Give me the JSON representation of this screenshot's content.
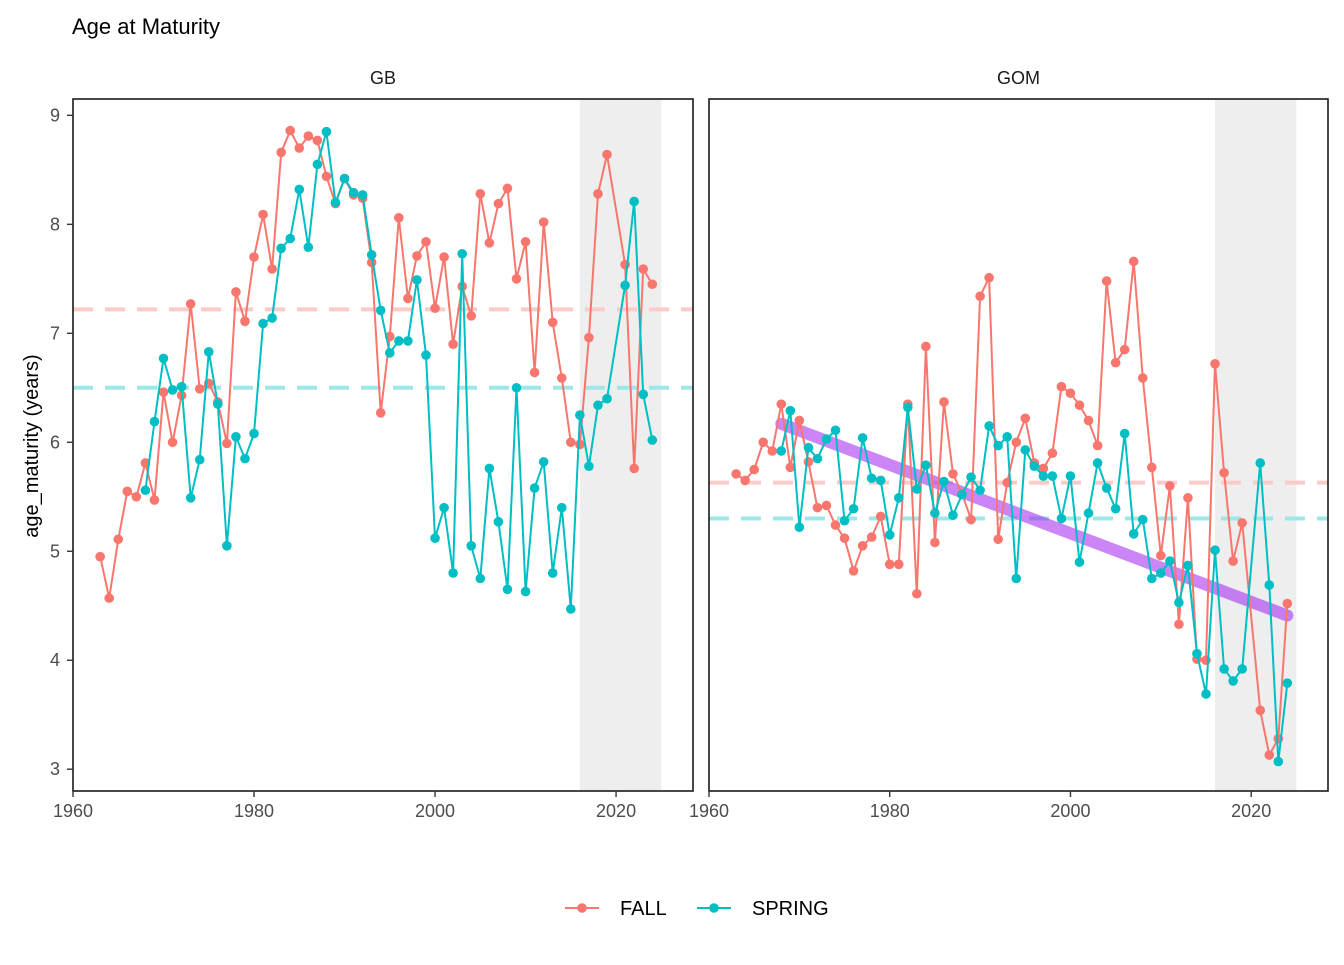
{
  "title": "Age at Maturity",
  "legend": {
    "position": "bottom",
    "items": [
      {
        "label": "FALL",
        "color": "#F8766D"
      },
      {
        "label": "SPRING",
        "color": "#00BFC4"
      }
    ]
  },
  "chart_data": {
    "type": "line",
    "title": "Age at Maturity",
    "ylabel": "age_maturity (years)",
    "xlabel": "",
    "xlim": [
      1960,
      2028.5
    ],
    "ylim": [
      2.8,
      9.15
    ],
    "x_ticks": [
      1960,
      1980,
      2000,
      2020
    ],
    "y_ticks": [
      3,
      4,
      5,
      6,
      7,
      8,
      9
    ],
    "grid": false,
    "legend_position": "bottom",
    "panels": [
      {
        "name": "GB",
        "shaded_range": [
          2016,
          2025
        ],
        "mean_lines": [
          {
            "series": "FALL",
            "value": 7.22
          },
          {
            "series": "SPRING",
            "value": 6.5
          }
        ],
        "trend": null,
        "series": [
          {
            "name": "FALL",
            "color": "#F8766D",
            "points": [
              [
                1963,
                4.95
              ],
              [
                1964,
                4.57
              ],
              [
                1965,
                5.11
              ],
              [
                1966,
                5.55
              ],
              [
                1967,
                5.5
              ],
              [
                1968,
                5.81
              ],
              [
                1969,
                5.47
              ],
              [
                1970,
                6.46
              ],
              [
                1971,
                6.0
              ],
              [
                1972,
                6.43
              ],
              [
                1973,
                7.27
              ],
              [
                1974,
                6.49
              ],
              [
                1975,
                6.54
              ],
              [
                1976,
                6.37
              ],
              [
                1977,
                5.99
              ],
              [
                1978,
                7.38
              ],
              [
                1979,
                7.11
              ],
              [
                1980,
                7.7
              ],
              [
                1981,
                8.09
              ],
              [
                1982,
                7.59
              ],
              [
                1983,
                8.66
              ],
              [
                1984,
                8.86
              ],
              [
                1985,
                8.7
              ],
              [
                1986,
                8.81
              ],
              [
                1987,
                8.77
              ],
              [
                1988,
                8.44
              ],
              [
                1989,
                8.19
              ],
              [
                1990,
                8.42
              ],
              [
                1991,
                8.27
              ],
              [
                1992,
                8.24
              ],
              [
                1993,
                7.65
              ],
              [
                1994,
                6.27
              ],
              [
                1995,
                6.97
              ],
              [
                1996,
                8.06
              ],
              [
                1997,
                7.32
              ],
              [
                1998,
                7.71
              ],
              [
                1999,
                7.84
              ],
              [
                2000,
                7.23
              ],
              [
                2001,
                7.7
              ],
              [
                2002,
                6.9
              ],
              [
                2003,
                7.43
              ],
              [
                2004,
                7.16
              ],
              [
                2005,
                8.28
              ],
              [
                2006,
                7.83
              ],
              [
                2007,
                8.19
              ],
              [
                2008,
                8.33
              ],
              [
                2009,
                7.5
              ],
              [
                2010,
                7.84
              ],
              [
                2011,
                6.64
              ],
              [
                2012,
                8.02
              ],
              [
                2013,
                7.1
              ],
              [
                2014,
                6.59
              ],
              [
                2015,
                6.0
              ],
              [
                2016,
                5.98
              ],
              [
                2017,
                6.96
              ],
              [
                2018,
                8.28
              ],
              [
                2019,
                8.64
              ],
              [
                2021,
                7.63
              ],
              [
                2022,
                5.76
              ],
              [
                2023,
                7.59
              ],
              [
                2024,
                7.45
              ]
            ]
          },
          {
            "name": "SPRING",
            "color": "#00BFC4",
            "points": [
              [
                1968,
                5.56
              ],
              [
                1969,
                6.19
              ],
              [
                1970,
                6.77
              ],
              [
                1971,
                6.48
              ],
              [
                1972,
                6.51
              ],
              [
                1973,
                5.49
              ],
              [
                1974,
                5.84
              ],
              [
                1975,
                6.83
              ],
              [
                1976,
                6.35
              ],
              [
                1977,
                5.05
              ],
              [
                1978,
                6.05
              ],
              [
                1979,
                5.85
              ],
              [
                1980,
                6.08
              ],
              [
                1981,
                7.09
              ],
              [
                1982,
                7.14
              ],
              [
                1983,
                7.78
              ],
              [
                1984,
                7.87
              ],
              [
                1985,
                8.32
              ],
              [
                1986,
                7.79
              ],
              [
                1987,
                8.55
              ],
              [
                1988,
                8.85
              ],
              [
                1989,
                8.2
              ],
              [
                1990,
                8.42
              ],
              [
                1991,
                8.29
              ],
              [
                1992,
                8.27
              ],
              [
                1993,
                7.72
              ],
              [
                1994,
                7.21
              ],
              [
                1995,
                6.82
              ],
              [
                1996,
                6.93
              ],
              [
                1997,
                6.93
              ],
              [
                1998,
                7.49
              ],
              [
                1999,
                6.8
              ],
              [
                2000,
                5.12
              ],
              [
                2001,
                5.4
              ],
              [
                2002,
                4.8
              ],
              [
                2003,
                7.73
              ],
              [
                2004,
                5.05
              ],
              [
                2005,
                4.75
              ],
              [
                2006,
                5.76
              ],
              [
                2007,
                5.27
              ],
              [
                2008,
                4.65
              ],
              [
                2009,
                6.5
              ],
              [
                2010,
                4.63
              ],
              [
                2011,
                5.58
              ],
              [
                2012,
                5.82
              ],
              [
                2013,
                4.8
              ],
              [
                2014,
                5.4
              ],
              [
                2015,
                4.47
              ],
              [
                2016,
                6.25
              ],
              [
                2017,
                5.78
              ],
              [
                2018,
                6.34
              ],
              [
                2019,
                6.4
              ],
              [
                2021,
                7.44
              ],
              [
                2022,
                8.21
              ],
              [
                2023,
                6.44
              ],
              [
                2024,
                6.02
              ]
            ]
          }
        ]
      },
      {
        "name": "GOM",
        "shaded_range": [
          2016,
          2025
        ],
        "mean_lines": [
          {
            "series": "FALL",
            "value": 5.63
          },
          {
            "series": "SPRING",
            "value": 5.3
          }
        ],
        "trend": {
          "x": [
            1968,
            2024
          ],
          "y": [
            6.17,
            4.41
          ],
          "color": "#A020F0"
        },
        "series": [
          {
            "name": "FALL",
            "color": "#F8766D",
            "points": [
              [
                1963,
                5.71
              ],
              [
                1964,
                5.65
              ],
              [
                1965,
                5.75
              ],
              [
                1966,
                6.0
              ],
              [
                1967,
                5.92
              ],
              [
                1968,
                6.35
              ],
              [
                1969,
                5.77
              ],
              [
                1970,
                6.2
              ],
              [
                1971,
                5.82
              ],
              [
                1972,
                5.4
              ],
              [
                1973,
                5.42
              ],
              [
                1974,
                5.24
              ],
              [
                1975,
                5.12
              ],
              [
                1976,
                4.82
              ],
              [
                1977,
                5.05
              ],
              [
                1978,
                5.13
              ],
              [
                1979,
                5.32
              ],
              [
                1980,
                4.88
              ],
              [
                1981,
                4.88
              ],
              [
                1982,
                6.35
              ],
              [
                1983,
                4.61
              ],
              [
                1984,
                6.88
              ],
              [
                1985,
                5.08
              ],
              [
                1986,
                6.37
              ],
              [
                1987,
                5.71
              ],
              [
                1988,
                5.53
              ],
              [
                1989,
                5.29
              ],
              [
                1990,
                7.34
              ],
              [
                1991,
                7.51
              ],
              [
                1992,
                5.11
              ],
              [
                1993,
                5.63
              ],
              [
                1994,
                6.0
              ],
              [
                1995,
                6.22
              ],
              [
                1996,
                5.81
              ],
              [
                1997,
                5.76
              ],
              [
                1998,
                5.9
              ],
              [
                1999,
                6.51
              ],
              [
                2000,
                6.45
              ],
              [
                2001,
                6.34
              ],
              [
                2002,
                6.2
              ],
              [
                2003,
                5.97
              ],
              [
                2004,
                7.48
              ],
              [
                2005,
                6.73
              ],
              [
                2006,
                6.85
              ],
              [
                2007,
                7.66
              ],
              [
                2008,
                6.59
              ],
              [
                2009,
                5.77
              ],
              [
                2010,
                4.96
              ],
              [
                2011,
                5.6
              ],
              [
                2012,
                4.33
              ],
              [
                2013,
                5.49
              ],
              [
                2014,
                4.01
              ],
              [
                2015,
                4.0
              ],
              [
                2016,
                6.72
              ],
              [
                2017,
                5.72
              ],
              [
                2018,
                4.91
              ],
              [
                2019,
                5.26
              ],
              [
                2021,
                3.54
              ],
              [
                2022,
                3.13
              ],
              [
                2023,
                3.28
              ],
              [
                2024,
                4.52
              ]
            ]
          },
          {
            "name": "SPRING",
            "color": "#00BFC4",
            "points": [
              [
                1968,
                5.92
              ],
              [
                1969,
                6.29
              ],
              [
                1970,
                5.22
              ],
              [
                1971,
                5.95
              ],
              [
                1972,
                5.85
              ],
              [
                1973,
                6.03
              ],
              [
                1974,
                6.11
              ],
              [
                1975,
                5.28
              ],
              [
                1976,
                5.39
              ],
              [
                1977,
                6.04
              ],
              [
                1978,
                5.67
              ],
              [
                1979,
                5.65
              ],
              [
                1980,
                5.15
              ],
              [
                1981,
                5.49
              ],
              [
                1982,
                6.32
              ],
              [
                1983,
                5.57
              ],
              [
                1984,
                5.79
              ],
              [
                1985,
                5.35
              ],
              [
                1986,
                5.64
              ],
              [
                1987,
                5.33
              ],
              [
                1988,
                5.52
              ],
              [
                1989,
                5.68
              ],
              [
                1990,
                5.56
              ],
              [
                1991,
                6.15
              ],
              [
                1992,
                5.97
              ],
              [
                1993,
                6.05
              ],
              [
                1994,
                4.75
              ],
              [
                1995,
                5.93
              ],
              [
                1996,
                5.78
              ],
              [
                1997,
                5.69
              ],
              [
                1998,
                5.69
              ],
              [
                1999,
                5.3
              ],
              [
                2000,
                5.69
              ],
              [
                2001,
                4.9
              ],
              [
                2002,
                5.35
              ],
              [
                2003,
                5.81
              ],
              [
                2004,
                5.58
              ],
              [
                2005,
                5.39
              ],
              [
                2006,
                6.08
              ],
              [
                2007,
                5.16
              ],
              [
                2008,
                5.29
              ],
              [
                2009,
                4.75
              ],
              [
                2010,
                4.8
              ],
              [
                2011,
                4.91
              ],
              [
                2012,
                4.53
              ],
              [
                2013,
                4.87
              ],
              [
                2014,
                4.06
              ],
              [
                2015,
                3.69
              ],
              [
                2016,
                5.01
              ],
              [
                2017,
                3.92
              ],
              [
                2018,
                3.81
              ],
              [
                2019,
                3.92
              ],
              [
                2021,
                5.81
              ],
              [
                2022,
                4.69
              ],
              [
                2023,
                3.07
              ],
              [
                2024,
                3.79
              ]
            ]
          }
        ]
      }
    ]
  }
}
